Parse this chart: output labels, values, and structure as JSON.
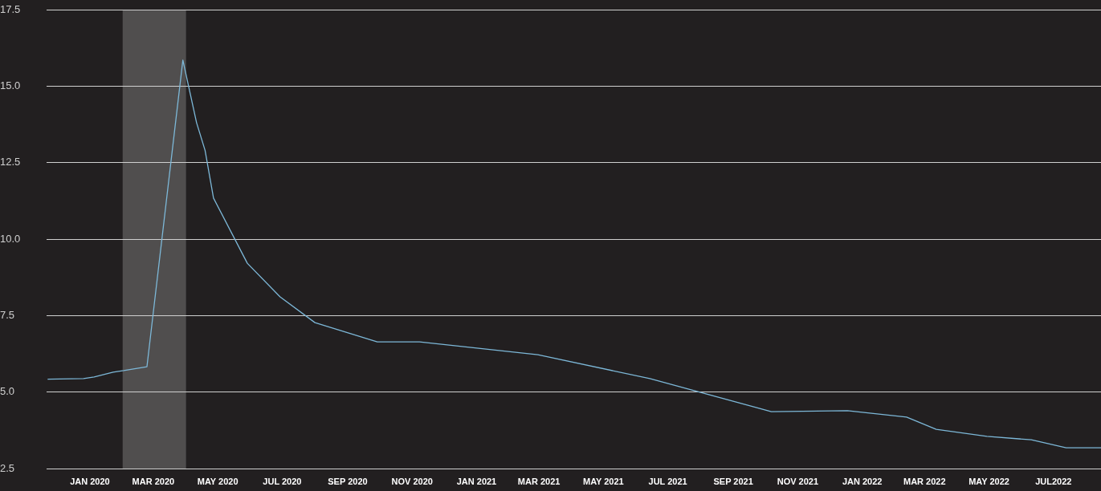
{
  "chart_data": {
    "type": "line",
    "x": [
      "2019-11-22",
      "2019-12-26",
      "2020-01-05",
      "2020-01-23",
      "2020-02-02",
      "2020-02-24",
      "2020-03-29",
      "2020-04-11",
      "2020-04-19",
      "2020-04-27",
      "2020-05-29",
      "2020-06-29",
      "2020-08-01",
      "2020-09-29",
      "2020-11-08",
      "2021-02-28",
      "2021-06-14",
      "2021-10-07",
      "2021-12-18",
      "2022-02-12",
      "2022-03-12",
      "2022-04-29",
      "2022-06-10",
      "2022-07-13",
      "2022-08-15"
    ],
    "series": [
      {
        "color": "#7db8d8",
        "values": [
          5.42,
          5.44,
          5.49,
          5.65,
          5.7,
          5.83,
          15.85,
          13.8,
          12.9,
          11.34,
          9.21,
          8.11,
          7.27,
          6.64,
          6.64,
          6.22,
          5.44,
          4.36,
          4.39,
          4.18,
          3.78,
          3.55,
          3.44,
          3.18,
          3.18
        ]
      }
    ],
    "xlim": [
      "2019-11-21",
      "2022-08-15"
    ],
    "xticks": [
      {
        "value": "2020-01",
        "label": "JAN 2020"
      },
      {
        "value": "2020-03",
        "label": "MAR 2020"
      },
      {
        "value": "2020-05",
        "label": "MAY 2020"
      },
      {
        "value": "2020-07",
        "label": "JUL 2020"
      },
      {
        "value": "2020-09",
        "label": "SEP 2020"
      },
      {
        "value": "2020-11",
        "label": "NOV 2020"
      },
      {
        "value": "2021-01",
        "label": "JAN 2021"
      },
      {
        "value": "2021-03",
        "label": "MAR 2021"
      },
      {
        "value": "2021-05",
        "label": "MAY 2021"
      },
      {
        "value": "2021-07",
        "label": "JUL 2021"
      },
      {
        "value": "2021-09",
        "label": "SEP 2021"
      },
      {
        "value": "2021-11",
        "label": "NOV 2021"
      },
      {
        "value": "2022-01",
        "label": "JAN 2022"
      },
      {
        "value": "2022-03",
        "label": "MAR 2022"
      },
      {
        "value": "2022-05",
        "label": "MAY 2022"
      },
      {
        "value": "2022-07",
        "label": "JUL2022"
      }
    ],
    "ylim": [
      2.5,
      17.5
    ],
    "yticks": [
      2.5,
      {
        "value": 5,
        "label": "5.0"
      },
      7.5,
      {
        "value": 10,
        "label": "10.0"
      },
      12.5,
      {
        "value": 15,
        "label": "15.0"
      },
      17.5
    ],
    "grid": "y",
    "marker": "none",
    "bands": [
      {
        "axis": "x",
        "from": "2020-02-01",
        "to": "2020-04-01",
        "color": "#504e4e"
      }
    ]
  }
}
